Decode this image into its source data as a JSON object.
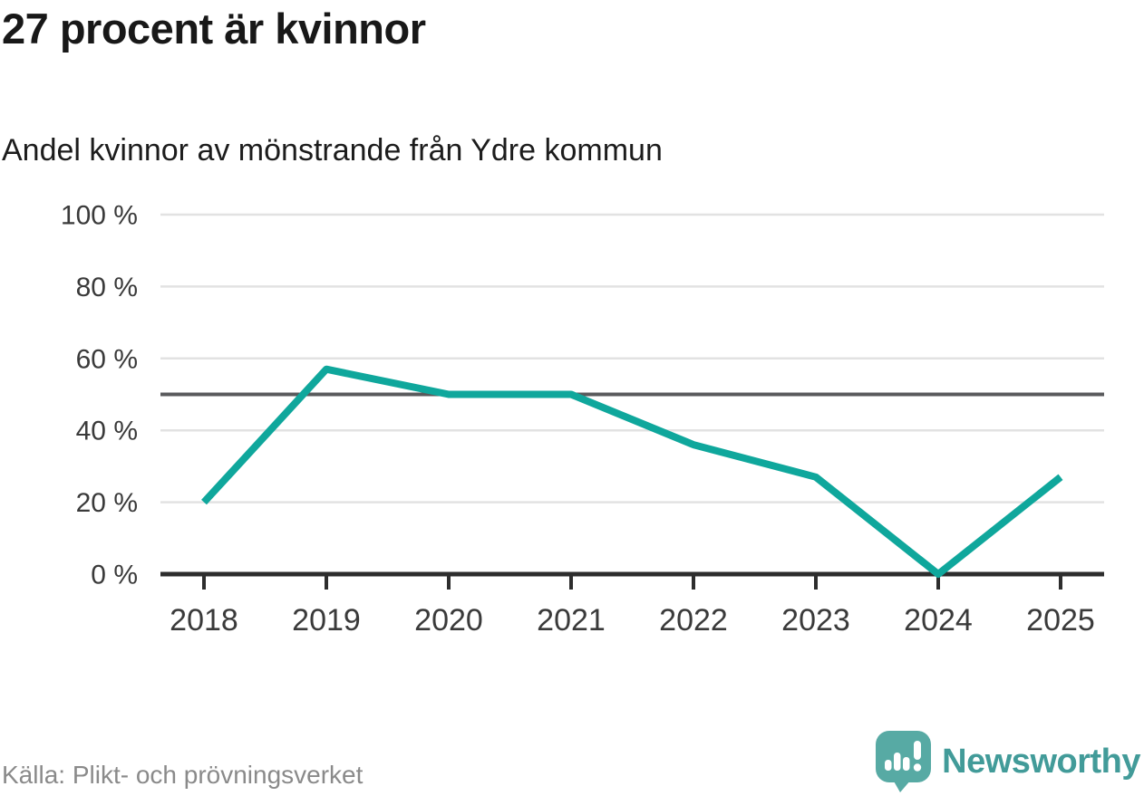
{
  "header": {
    "title": "27 procent är kvinnor",
    "subtitle": "Andel kvinnor av mönstrande från Ydre kommun"
  },
  "chart_data": {
    "type": "line",
    "title": "27 procent är kvinnor",
    "subtitle": "Andel kvinnor av mönstrande från Ydre kommun",
    "x": [
      2018,
      2019,
      2020,
      2021,
      2022,
      2023,
      2024,
      2025
    ],
    "xtick_labels": [
      "2018",
      "2019",
      "2020",
      "2021",
      "2022",
      "2023",
      "2024",
      "2025"
    ],
    "series": [
      {
        "name": "Andel kvinnor",
        "values": [
          20,
          57,
          50,
          50,
          36,
          27,
          0,
          27
        ]
      }
    ],
    "unit": "%",
    "ylim": [
      0,
      100
    ],
    "yticks": [
      0,
      20,
      40,
      60,
      80,
      100
    ],
    "ytick_labels": [
      "0 %",
      "20 %",
      "40 %",
      "60 %",
      "80 %",
      "100 %"
    ],
    "reference_line": 50,
    "grid": "horizontal",
    "legend": "none"
  },
  "footer": {
    "source": "Källa: Plikt- och prövningsverket",
    "logo_text": "Newsworthy"
  },
  "colors": {
    "line": "#0fa79c",
    "reference": "#595a5c",
    "grid": "#e2e2e2",
    "axis": "#2d2d2d",
    "tick_label": "#3a3a3a",
    "title": "#181818",
    "source": "#8a8a8a",
    "logo_icon": "#57aaa4",
    "logo_text": "#429b99"
  }
}
